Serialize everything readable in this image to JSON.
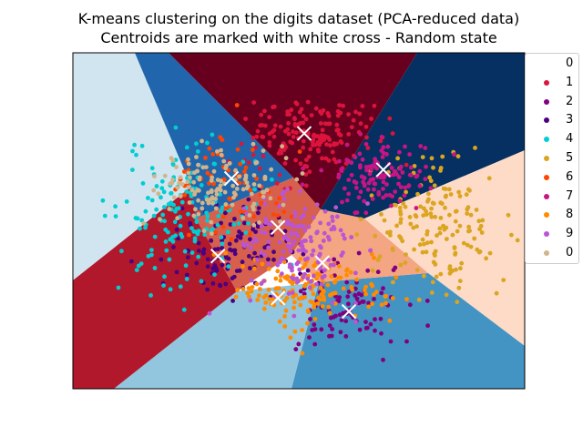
{
  "chart_data": {
    "type": "scatter",
    "title": "K-means clustering on the digits dataset (PCA-reduced data)",
    "subtitle": "Centroids are marked with white cross - Random state",
    "xlabel": "",
    "ylabel": "",
    "axes_ticks": "none",
    "legend_position": "outside top-right",
    "legend_entries": [
      "0",
      "1",
      "2",
      "3",
      "4",
      "5",
      "6",
      "7",
      "8",
      "9",
      "0"
    ],
    "colors": {
      "0": "#ffffff",
      "1": "#dc143c",
      "2": "#800080",
      "3": "#4b0082",
      "4": "#00ced1",
      "5": "#daa520",
      "6": "#ff4500",
      "7": "#c71585",
      "8": "#ff8c00",
      "9": "#ba55d3",
      "0b": "#d2b48c"
    },
    "decision_region_colors": [
      "#67001f",
      "#053061",
      "#2166ac",
      "#d1e5f0",
      "#b2182b",
      "#92c5de",
      "#4393c3",
      "#fddbc7",
      "#d6604d",
      "#f4a582"
    ],
    "clusters": [
      {
        "digit": "1",
        "x": 0.52,
        "y": 0.75,
        "sx": 0.07,
        "sy": 0.055,
        "n": 170
      },
      {
        "digit": "2",
        "x": 0.6,
        "y": 0.24,
        "sx": 0.06,
        "sy": 0.07,
        "n": 90
      },
      {
        "digit": "3",
        "x": 0.37,
        "y": 0.42,
        "sx": 0.08,
        "sy": 0.07,
        "n": 120
      },
      {
        "digit": "4",
        "x": 0.25,
        "y": 0.52,
        "sx": 0.075,
        "sy": 0.11,
        "n": 160
      },
      {
        "digit": "5",
        "x": 0.8,
        "y": 0.48,
        "sx": 0.075,
        "sy": 0.1,
        "n": 170
      },
      {
        "digit": "6",
        "x": 0.36,
        "y": 0.6,
        "sx": 0.07,
        "sy": 0.08,
        "n": 70
      },
      {
        "digit": "7",
        "x": 0.68,
        "y": 0.63,
        "sx": 0.06,
        "sy": 0.05,
        "n": 120
      },
      {
        "digit": "8",
        "x": 0.52,
        "y": 0.3,
        "sx": 0.08,
        "sy": 0.06,
        "n": 170
      },
      {
        "digit": "9",
        "x": 0.5,
        "y": 0.42,
        "sx": 0.07,
        "sy": 0.08,
        "n": 160
      },
      {
        "digit": "0b",
        "x": 0.32,
        "y": 0.6,
        "sx": 0.07,
        "sy": 0.05,
        "n": 130
      }
    ],
    "centroids": [
      {
        "x": 0.512,
        "y": 0.76
      },
      {
        "x": 0.687,
        "y": 0.652
      },
      {
        "x": 0.351,
        "y": 0.626
      },
      {
        "x": 0.454,
        "y": 0.48
      },
      {
        "x": 0.321,
        "y": 0.395
      },
      {
        "x": 0.552,
        "y": 0.375
      },
      {
        "x": 0.454,
        "y": 0.27
      },
      {
        "x": 0.611,
        "y": 0.23
      }
    ]
  }
}
